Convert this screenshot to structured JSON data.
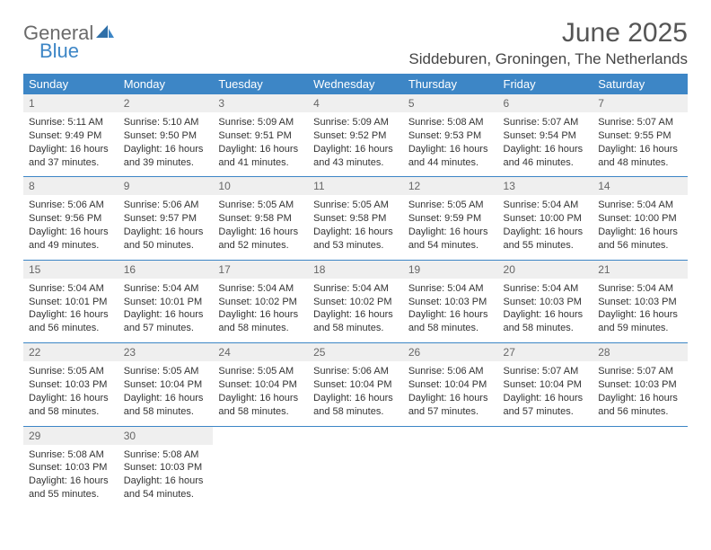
{
  "brand": {
    "part1": "General",
    "part2": "Blue",
    "text_color1": "#6a6a6a",
    "text_color2": "#3d86c6"
  },
  "title": "June 2025",
  "location": "Siddeburen, Groningen, The Netherlands",
  "colors": {
    "header_bg": "#3d86c6",
    "header_text": "#ffffff",
    "daynum_bg": "#efefef",
    "daynum_text": "#666666",
    "detail_text": "#333333",
    "rule": "#3d86c6"
  },
  "weekdays": [
    "Sunday",
    "Monday",
    "Tuesday",
    "Wednesday",
    "Thursday",
    "Friday",
    "Saturday"
  ],
  "weeks": [
    [
      {
        "n": "1",
        "sr": "5:11 AM",
        "ss": "9:49 PM",
        "dl": "16 hours and 37 minutes."
      },
      {
        "n": "2",
        "sr": "5:10 AM",
        "ss": "9:50 PM",
        "dl": "16 hours and 39 minutes."
      },
      {
        "n": "3",
        "sr": "5:09 AM",
        "ss": "9:51 PM",
        "dl": "16 hours and 41 minutes."
      },
      {
        "n": "4",
        "sr": "5:09 AM",
        "ss": "9:52 PM",
        "dl": "16 hours and 43 minutes."
      },
      {
        "n": "5",
        "sr": "5:08 AM",
        "ss": "9:53 PM",
        "dl": "16 hours and 44 minutes."
      },
      {
        "n": "6",
        "sr": "5:07 AM",
        "ss": "9:54 PM",
        "dl": "16 hours and 46 minutes."
      },
      {
        "n": "7",
        "sr": "5:07 AM",
        "ss": "9:55 PM",
        "dl": "16 hours and 48 minutes."
      }
    ],
    [
      {
        "n": "8",
        "sr": "5:06 AM",
        "ss": "9:56 PM",
        "dl": "16 hours and 49 minutes."
      },
      {
        "n": "9",
        "sr": "5:06 AM",
        "ss": "9:57 PM",
        "dl": "16 hours and 50 minutes."
      },
      {
        "n": "10",
        "sr": "5:05 AM",
        "ss": "9:58 PM",
        "dl": "16 hours and 52 minutes."
      },
      {
        "n": "11",
        "sr": "5:05 AM",
        "ss": "9:58 PM",
        "dl": "16 hours and 53 minutes."
      },
      {
        "n": "12",
        "sr": "5:05 AM",
        "ss": "9:59 PM",
        "dl": "16 hours and 54 minutes."
      },
      {
        "n": "13",
        "sr": "5:04 AM",
        "ss": "10:00 PM",
        "dl": "16 hours and 55 minutes."
      },
      {
        "n": "14",
        "sr": "5:04 AM",
        "ss": "10:00 PM",
        "dl": "16 hours and 56 minutes."
      }
    ],
    [
      {
        "n": "15",
        "sr": "5:04 AM",
        "ss": "10:01 PM",
        "dl": "16 hours and 56 minutes."
      },
      {
        "n": "16",
        "sr": "5:04 AM",
        "ss": "10:01 PM",
        "dl": "16 hours and 57 minutes."
      },
      {
        "n": "17",
        "sr": "5:04 AM",
        "ss": "10:02 PM",
        "dl": "16 hours and 58 minutes."
      },
      {
        "n": "18",
        "sr": "5:04 AM",
        "ss": "10:02 PM",
        "dl": "16 hours and 58 minutes."
      },
      {
        "n": "19",
        "sr": "5:04 AM",
        "ss": "10:03 PM",
        "dl": "16 hours and 58 minutes."
      },
      {
        "n": "20",
        "sr": "5:04 AM",
        "ss": "10:03 PM",
        "dl": "16 hours and 58 minutes."
      },
      {
        "n": "21",
        "sr": "5:04 AM",
        "ss": "10:03 PM",
        "dl": "16 hours and 59 minutes."
      }
    ],
    [
      {
        "n": "22",
        "sr": "5:05 AM",
        "ss": "10:03 PM",
        "dl": "16 hours and 58 minutes."
      },
      {
        "n": "23",
        "sr": "5:05 AM",
        "ss": "10:04 PM",
        "dl": "16 hours and 58 minutes."
      },
      {
        "n": "24",
        "sr": "5:05 AM",
        "ss": "10:04 PM",
        "dl": "16 hours and 58 minutes."
      },
      {
        "n": "25",
        "sr": "5:06 AM",
        "ss": "10:04 PM",
        "dl": "16 hours and 58 minutes."
      },
      {
        "n": "26",
        "sr": "5:06 AM",
        "ss": "10:04 PM",
        "dl": "16 hours and 57 minutes."
      },
      {
        "n": "27",
        "sr": "5:07 AM",
        "ss": "10:04 PM",
        "dl": "16 hours and 57 minutes."
      },
      {
        "n": "28",
        "sr": "5:07 AM",
        "ss": "10:03 PM",
        "dl": "16 hours and 56 minutes."
      }
    ],
    [
      {
        "n": "29",
        "sr": "5:08 AM",
        "ss": "10:03 PM",
        "dl": "16 hours and 55 minutes."
      },
      {
        "n": "30",
        "sr": "5:08 AM",
        "ss": "10:03 PM",
        "dl": "16 hours and 54 minutes."
      },
      null,
      null,
      null,
      null,
      null
    ]
  ],
  "labels": {
    "sunrise": "Sunrise: ",
    "sunset": "Sunset: ",
    "daylight": "Daylight: "
  }
}
